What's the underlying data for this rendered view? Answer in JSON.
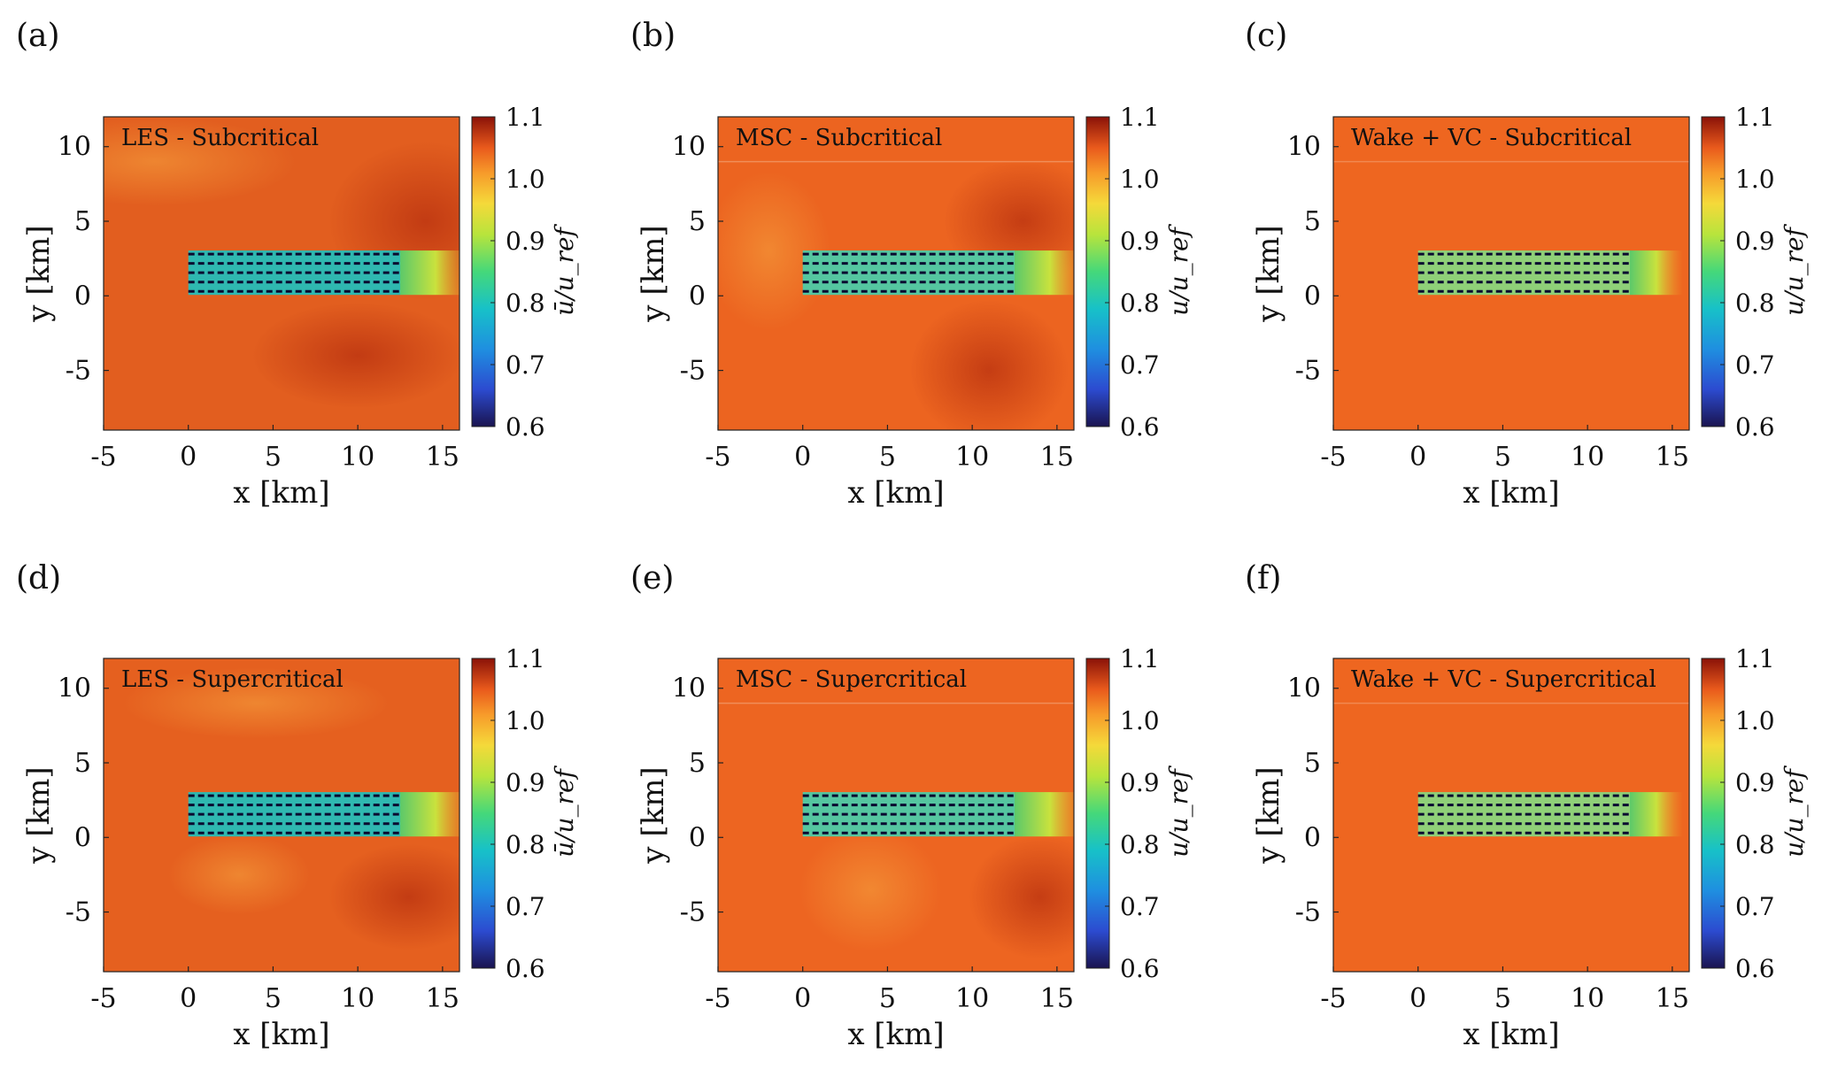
{
  "figure": {
    "panels": [
      {
        "letter": "(a)",
        "label": "LES - Subcritical",
        "cbar_label": "ū/u_ref",
        "cbar_overline": true
      },
      {
        "letter": "(b)",
        "label": "MSC - Subcritical",
        "cbar_label": "u/u_ref",
        "cbar_overline": false
      },
      {
        "letter": "(c)",
        "label": "Wake + VC - Subcritical",
        "cbar_label": "u/u_ref",
        "cbar_overline": false
      },
      {
        "letter": "(d)",
        "label": "LES - Supercritical",
        "cbar_label": "ū/u_ref",
        "cbar_overline": true
      },
      {
        "letter": "(e)",
        "label": "MSC - Supercritical",
        "cbar_label": "u/u_ref",
        "cbar_overline": false
      },
      {
        "letter": "(f)",
        "label": "Wake + VC - Supercritical",
        "cbar_label": "u/u_ref",
        "cbar_overline": false
      }
    ]
  },
  "chart_data": [
    {
      "type": "heatmap",
      "title": "LES - Subcritical",
      "panel": "(a)",
      "xlabel": "x [km]",
      "ylabel": "y [km]",
      "xlim": [
        -5,
        16
      ],
      "ylim": [
        -9,
        12
      ],
      "xticks": [
        -5,
        0,
        5,
        10,
        15
      ],
      "yticks": [
        -5,
        0,
        5,
        10
      ],
      "colorbar": {
        "label": "ū/u_ref",
        "range": [
          0.6,
          1.1
        ],
        "ticks": [
          0.6,
          0.7,
          0.8,
          0.9,
          1.0,
          1.1
        ]
      },
      "farm": {
        "x_range": [
          0,
          12.5
        ],
        "y_range": [
          0.3,
          2.8
        ],
        "turbine_rows": 5
      },
      "field_value_background": 1.03
    },
    {
      "type": "heatmap",
      "title": "MSC - Subcritical",
      "panel": "(b)",
      "xlabel": "x [km]",
      "ylabel": "y [km]",
      "xlim": [
        -5,
        16
      ],
      "ylim": [
        -9,
        12
      ],
      "xticks": [
        -5,
        0,
        5,
        10,
        15
      ],
      "yticks": [
        -5,
        0,
        5,
        10
      ],
      "colorbar": {
        "label": "u/u_ref",
        "range": [
          0.6,
          1.1
        ],
        "ticks": [
          0.6,
          0.7,
          0.8,
          0.9,
          1.0,
          1.1
        ]
      },
      "farm": {
        "x_range": [
          0,
          12.5
        ],
        "y_range": [
          0.3,
          2.8
        ],
        "turbine_rows": 5
      },
      "field_value_background": 1.02
    },
    {
      "type": "heatmap",
      "title": "Wake + VC - Subcritical",
      "panel": "(c)",
      "xlabel": "x [km]",
      "ylabel": "y [km]",
      "xlim": [
        -5,
        16
      ],
      "ylim": [
        -9,
        12
      ],
      "xticks": [
        -5,
        0,
        5,
        10,
        15
      ],
      "yticks": [
        -5,
        0,
        5,
        10
      ],
      "colorbar": {
        "label": "u/u_ref",
        "range": [
          0.6,
          1.1
        ],
        "ticks": [
          0.6,
          0.7,
          0.8,
          0.9,
          1.0,
          1.1
        ]
      },
      "farm": {
        "x_range": [
          0,
          12.5
        ],
        "y_range": [
          0.3,
          2.8
        ],
        "turbine_rows": 5
      },
      "field_value_background": 1.02
    },
    {
      "type": "heatmap",
      "title": "LES - Supercritical",
      "panel": "(d)",
      "xlabel": "x [km]",
      "ylabel": "y [km]",
      "xlim": [
        -5,
        16
      ],
      "ylim": [
        -9,
        12
      ],
      "xticks": [
        -5,
        0,
        5,
        10,
        15
      ],
      "yticks": [
        -5,
        0,
        5,
        10
      ],
      "colorbar": {
        "label": "ū/u_ref",
        "range": [
          0.6,
          1.1
        ],
        "ticks": [
          0.6,
          0.7,
          0.8,
          0.9,
          1.0,
          1.1
        ]
      },
      "farm": {
        "x_range": [
          0,
          12.5
        ],
        "y_range": [
          0.3,
          2.8
        ],
        "turbine_rows": 5
      },
      "field_value_background": 1.02
    },
    {
      "type": "heatmap",
      "title": "MSC - Supercritical",
      "panel": "(e)",
      "xlabel": "x [km]",
      "ylabel": "y [km]",
      "xlim": [
        -5,
        16
      ],
      "ylim": [
        -9,
        12
      ],
      "xticks": [
        -5,
        0,
        5,
        10,
        15
      ],
      "yticks": [
        -5,
        0,
        5,
        10
      ],
      "colorbar": {
        "label": "u/u_ref",
        "range": [
          0.6,
          1.1
        ],
        "ticks": [
          0.6,
          0.7,
          0.8,
          0.9,
          1.0,
          1.1
        ]
      },
      "farm": {
        "x_range": [
          0,
          12.5
        ],
        "y_range": [
          0.3,
          2.8
        ],
        "turbine_rows": 5
      },
      "field_value_background": 1.02
    },
    {
      "type": "heatmap",
      "title": "Wake + VC - Supercritical",
      "panel": "(f)",
      "xlabel": "x [km]",
      "ylabel": "y [km]",
      "xlim": [
        -5,
        16
      ],
      "ylim": [
        -9,
        12
      ],
      "xticks": [
        -5,
        0,
        5,
        10,
        15
      ],
      "yticks": [
        -5,
        0,
        5,
        10
      ],
      "colorbar": {
        "label": "u/u_ref",
        "range": [
          0.6,
          1.1
        ],
        "ticks": [
          0.6,
          0.7,
          0.8,
          0.9,
          1.0,
          1.1
        ]
      },
      "farm": {
        "x_range": [
          0,
          12.5
        ],
        "y_range": [
          0.3,
          2.8
        ],
        "turbine_rows": 5
      },
      "field_value_background": 1.02
    }
  ]
}
